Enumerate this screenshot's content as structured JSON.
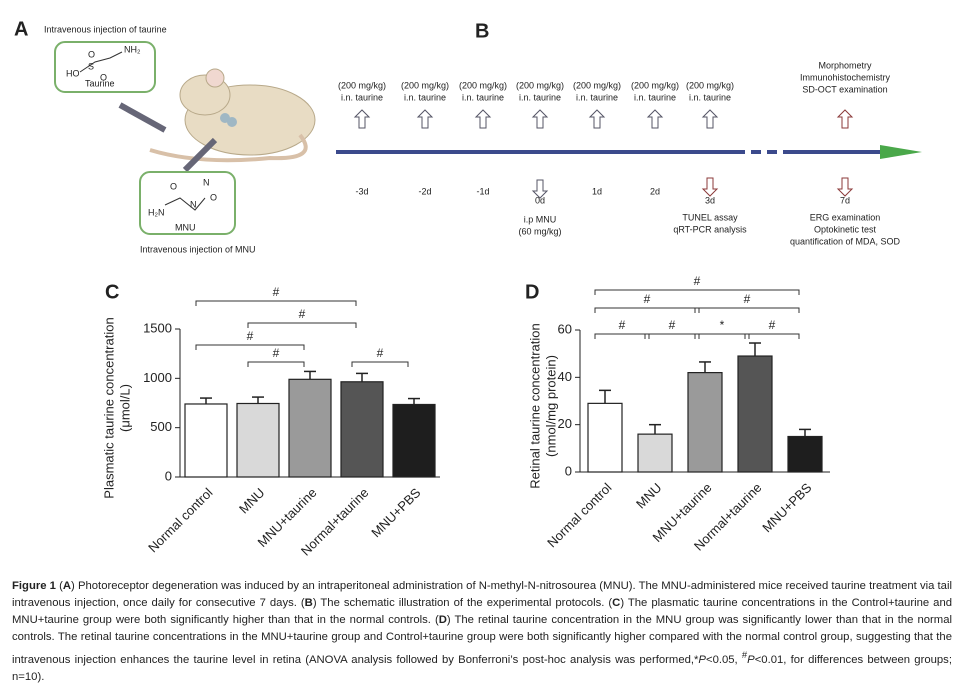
{
  "panel_a": {
    "label": "A",
    "top_text": "Intravenous injection of taurine",
    "bottom_text": "Intravenous injection of MNU",
    "taurine": {
      "name": "Taurine",
      "atoms": [
        "O",
        "S",
        "HO",
        "O",
        "NH₂"
      ]
    },
    "mnu": {
      "name": "MNU",
      "atoms": [
        "O",
        "N",
        "O",
        "N",
        "H₂N"
      ]
    }
  },
  "panel_b": {
    "label": "B",
    "doses": [
      [
        "(200 mg/kg)",
        "i.n. taurine"
      ],
      [
        "(200 mg/kg)",
        "i.n. taurine"
      ],
      [
        "(200 mg/kg)",
        "i.n. taurine"
      ],
      [
        "(200 mg/kg)",
        "i.n. taurine"
      ],
      [
        "(200 mg/kg)",
        "i.n. taurine"
      ],
      [
        "(200 mg/kg)",
        "i.n. taurine"
      ],
      [
        "(200 mg/kg)",
        "i.n. taurine"
      ]
    ],
    "days": [
      "-3d",
      "-2d",
      "-1d",
      "0d",
      "1d",
      "2d",
      "3d",
      "7d"
    ],
    "day0_below": [
      "i.p MNU",
      "(60 mg/kg)"
    ],
    "day3_below": [
      "TUNEL assay",
      "qRT-PCR analysis"
    ],
    "day7_above": [
      "Morphometry",
      "Immunohistochemistry",
      "SD-OCT examination"
    ],
    "day7_below": [
      "ERG examination",
      "Optokinetic test",
      "quantification of MDA, SOD"
    ]
  },
  "chart_data": [
    {
      "type": "bar",
      "panel": "C",
      "ylabel": [
        "Plasmatic taurine concentration",
        "(μmol/L)"
      ],
      "categories": [
        "Normal control",
        "MNU",
        "MNU+taurine",
        "Normal+taurine",
        "MNU+PBS"
      ],
      "values": [
        740,
        745,
        990,
        965,
        735
      ],
      "errors": [
        60,
        65,
        80,
        85,
        60
      ],
      "colors": [
        "#ffffff",
        "#d9d9d9",
        "#9a9a9a",
        "#555555",
        "#1e1e1e"
      ],
      "ylim": [
        0,
        1500
      ],
      "yticks": [
        0,
        500,
        1000,
        1500
      ],
      "brackets": [
        {
          "from": 1,
          "to": 2,
          "label": "#"
        },
        {
          "from": 3,
          "to": 4,
          "label": "#"
        },
        {
          "from": 0,
          "to": 2,
          "label": "#"
        },
        {
          "from": 1,
          "to": 3,
          "label": "#"
        },
        {
          "from": 0,
          "to": 3,
          "label": "#"
        }
      ]
    },
    {
      "type": "bar",
      "panel": "D",
      "ylabel": [
        "Retinal taurine concentration",
        "(nmol/mg protein)"
      ],
      "categories": [
        "Normal control",
        "MNU",
        "MNU+taurine",
        "Normal+taurine",
        "MNU+PBS"
      ],
      "values": [
        29,
        16,
        42,
        49,
        15
      ],
      "errors": [
        5.5,
        4,
        4.5,
        5.5,
        3
      ],
      "colors": [
        "#ffffff",
        "#d9d9d9",
        "#9a9a9a",
        "#555555",
        "#1e1e1e"
      ],
      "ylim": [
        0,
        60
      ],
      "yticks": [
        0,
        20,
        40,
        60
      ],
      "brackets": [
        {
          "from": 0,
          "to": 1,
          "label": "#"
        },
        {
          "from": 1,
          "to": 2,
          "label": "#"
        },
        {
          "from": 2,
          "to": 3,
          "label": "*"
        },
        {
          "from": 3,
          "to": 4,
          "label": "#"
        },
        {
          "from": 0,
          "to": 2,
          "label": "#"
        },
        {
          "from": 2,
          "to": 4,
          "label": "#"
        },
        {
          "from": 0,
          "to": 4,
          "label": "#"
        }
      ]
    }
  ],
  "caption": [
    {
      "t": "Figure 1",
      "s": "b"
    },
    {
      "t": " ("
    },
    {
      "t": "A",
      "s": "b"
    },
    {
      "t": ") Photoreceptor degeneration was induced by an intraperitoneal administration of N-methyl-N-nitrosourea (MNU). The MNU-administered mice received taurine treatment via tail intravenous injection, once daily for consecutive 7 days. ("
    },
    {
      "t": "B",
      "s": "b"
    },
    {
      "t": ") The schematic illustration of the experimental protocols. ("
    },
    {
      "t": "C",
      "s": "b"
    },
    {
      "t": ") The plasmatic taurine concentrations in the Control+taurine and MNU+taurine group were both significantly higher than that in the normal controls. ("
    },
    {
      "t": "D",
      "s": "b"
    },
    {
      "t": ") The retinal taurine concentration in the MNU group was significantly lower than that in the normal controls. The retinal taurine concentrations in the MNU+taurine group and Control+taurine group were both significantly higher compared with the normal control group, suggesting that the intravenous injection enhances the taurine level in retina (ANOVA analysis followed by Bonferroni’s post-hoc analysis was performed,*"
    },
    {
      "t": "P",
      "s": "i"
    },
    {
      "t": "<0.05, "
    },
    {
      "t": "#",
      "s": "sup"
    },
    {
      "t": "P",
      "s": "i"
    },
    {
      "t": "<0.01, for differences between groups; n=10)."
    }
  ]
}
